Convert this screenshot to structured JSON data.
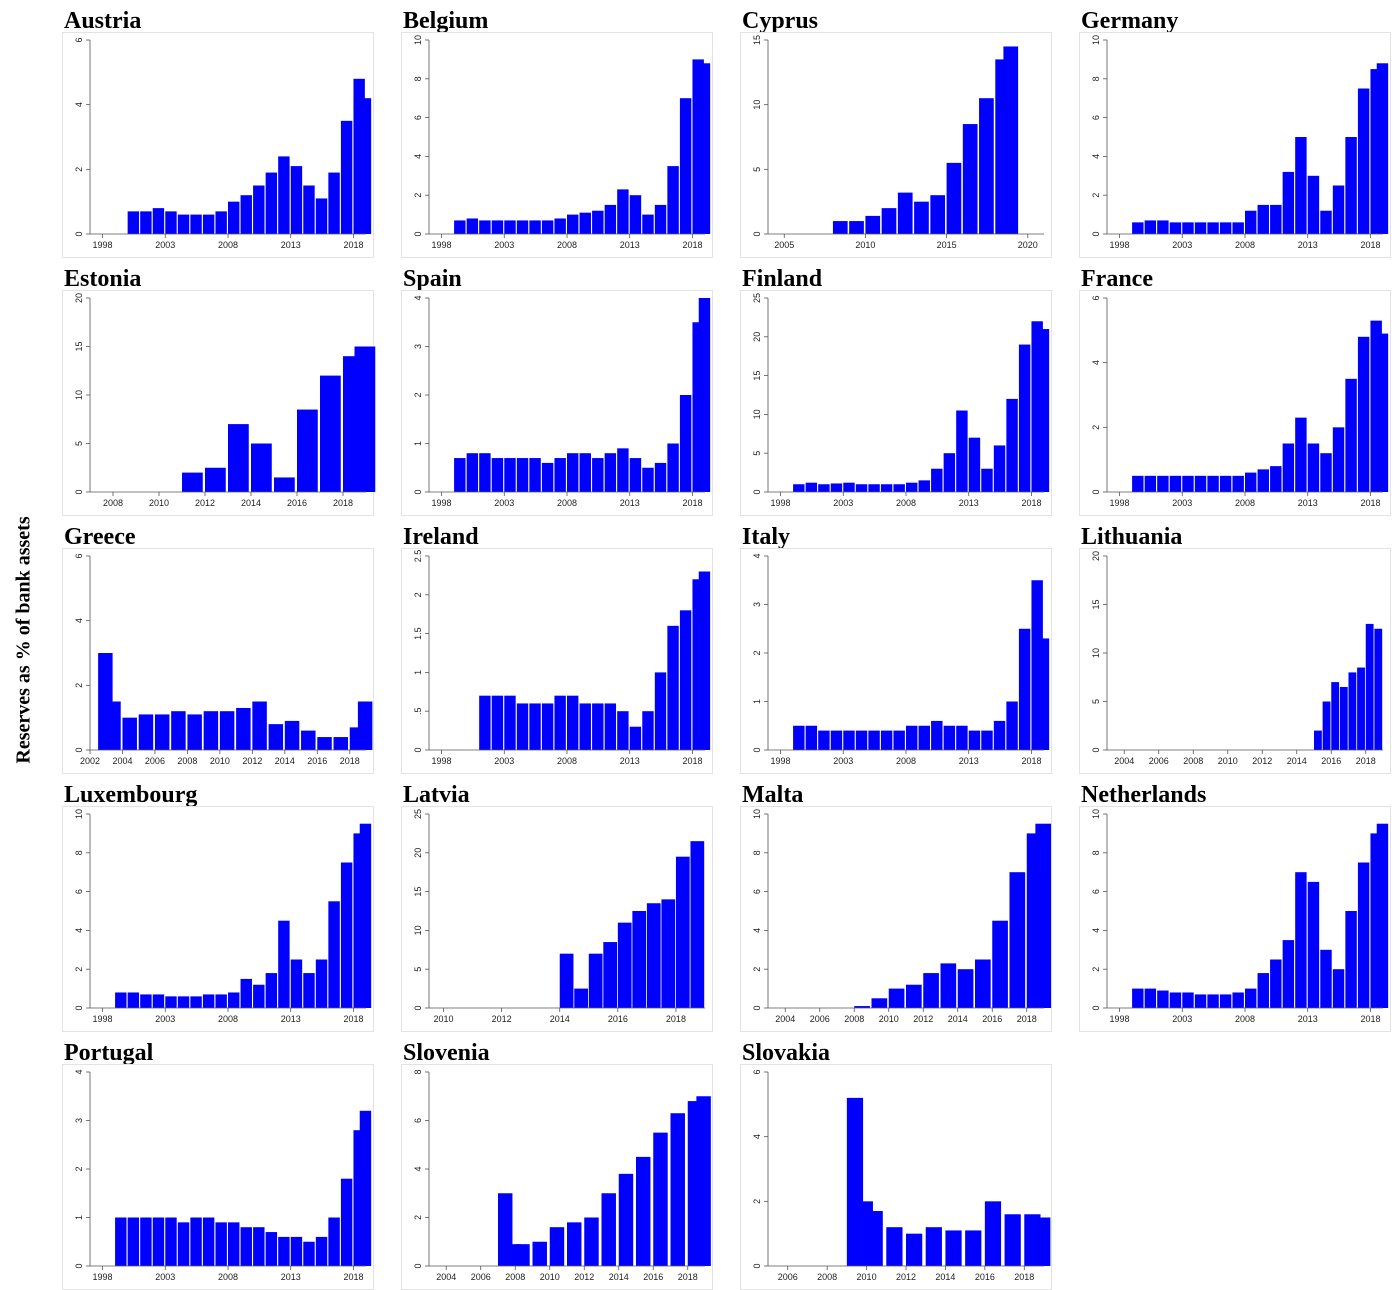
{
  "ylabel": "Reserves as % of bank assets",
  "bar_color": "#0000ff",
  "chart_data": [
    {
      "type": "bar",
      "title": "Austria",
      "xlim": [
        1997,
        2019
      ],
      "xticks": [
        1998,
        2003,
        2008,
        2013,
        2018
      ],
      "ylim": [
        0,
        6
      ],
      "yticks": [
        0,
        2,
        4,
        6
      ],
      "series": {
        "x": [
          2000,
          2001,
          2002,
          2003,
          2004,
          2005,
          2006,
          2007,
          2008,
          2009,
          2010,
          2011,
          2012,
          2013,
          2014,
          2015,
          2016,
          2017,
          2018,
          2018.5
        ],
        "y": [
          0.7,
          0.7,
          0.8,
          0.7,
          0.6,
          0.6,
          0.6,
          0.7,
          1.0,
          1.2,
          1.5,
          1.9,
          2.4,
          2.1,
          1.5,
          1.1,
          1.9,
          3.5,
          4.8,
          4.2
        ]
      }
    },
    {
      "type": "bar",
      "title": "Belgium",
      "xlim": [
        1997,
        2019
      ],
      "xticks": [
        1998,
        2003,
        2008,
        2013,
        2018
      ],
      "ylim": [
        0,
        10
      ],
      "yticks": [
        0,
        2,
        4,
        6,
        8,
        10
      ],
      "series": {
        "x": [
          1999,
          2000,
          2001,
          2002,
          2003,
          2004,
          2005,
          2006,
          2007,
          2008,
          2009,
          2010,
          2011,
          2012,
          2013,
          2014,
          2015,
          2016,
          2017,
          2018,
          2018.5
        ],
        "y": [
          0.7,
          0.8,
          0.7,
          0.7,
          0.7,
          0.7,
          0.7,
          0.7,
          0.8,
          1.0,
          1.1,
          1.2,
          1.5,
          2.3,
          2.0,
          1.0,
          1.5,
          3.5,
          7.0,
          9.0,
          8.8
        ]
      }
    },
    {
      "type": "bar",
      "title": "Cyprus",
      "xlim": [
        2004,
        2021
      ],
      "xticks": [
        2005,
        2010,
        2015,
        2020
      ],
      "ylim": [
        0,
        15
      ],
      "yticks": [
        0,
        5,
        10,
        15
      ],
      "series": {
        "x": [
          2008,
          2009,
          2010,
          2011,
          2012,
          2013,
          2014,
          2015,
          2016,
          2017,
          2018,
          2018.5
        ],
        "y": [
          1.0,
          1.0,
          1.4,
          2.0,
          3.2,
          2.5,
          3.0,
          5.5,
          8.5,
          10.5,
          13.5,
          14.5
        ]
      }
    },
    {
      "type": "bar",
      "title": "Germany",
      "xlim": [
        1997,
        2019
      ],
      "xticks": [
        1998,
        2003,
        2008,
        2013,
        2018
      ],
      "ylim": [
        0,
        10
      ],
      "yticks": [
        0,
        2,
        4,
        6,
        8,
        10
      ],
      "series": {
        "x": [
          1999,
          2000,
          2001,
          2002,
          2003,
          2004,
          2005,
          2006,
          2007,
          2008,
          2009,
          2010,
          2011,
          2012,
          2013,
          2014,
          2015,
          2016,
          2017,
          2018,
          2018.5
        ],
        "y": [
          0.6,
          0.7,
          0.7,
          0.6,
          0.6,
          0.6,
          0.6,
          0.6,
          0.6,
          1.2,
          1.5,
          1.5,
          3.2,
          5.0,
          3.0,
          1.2,
          2.5,
          5.0,
          7.5,
          8.5,
          8.8
        ]
      }
    },
    {
      "type": "bar",
      "title": "Estonia",
      "xlim": [
        2007,
        2019
      ],
      "xticks": [
        2008,
        2010,
        2012,
        2014,
        2016,
        2018
      ],
      "ylim": [
        0,
        20
      ],
      "yticks": [
        0,
        5,
        10,
        15,
        20
      ],
      "series": {
        "x": [
          2011,
          2012,
          2013,
          2014,
          2015,
          2016,
          2017,
          2018,
          2018.5
        ],
        "y": [
          2.0,
          2.5,
          7.0,
          5.0,
          1.5,
          8.5,
          12.0,
          14.0,
          15.0
        ]
      }
    },
    {
      "type": "bar",
      "title": "Spain",
      "xlim": [
        1997,
        2019
      ],
      "xticks": [
        1998,
        2003,
        2008,
        2013,
        2018
      ],
      "ylim": [
        0,
        4
      ],
      "yticks": [
        0,
        1,
        2,
        3,
        4
      ],
      "series": {
        "x": [
          1999,
          2000,
          2001,
          2002,
          2003,
          2004,
          2005,
          2006,
          2007,
          2008,
          2009,
          2010,
          2011,
          2012,
          2013,
          2014,
          2015,
          2016,
          2017,
          2018,
          2018.5
        ],
        "y": [
          0.7,
          0.8,
          0.8,
          0.7,
          0.7,
          0.7,
          0.7,
          0.6,
          0.7,
          0.8,
          0.8,
          0.7,
          0.8,
          0.9,
          0.7,
          0.5,
          0.6,
          1.0,
          2.0,
          3.5,
          4.0
        ]
      }
    },
    {
      "type": "bar",
      "title": "Finland",
      "xlim": [
        1997,
        2019
      ],
      "xticks": [
        1998,
        2003,
        2008,
        2013,
        2018
      ],
      "ylim": [
        0,
        25
      ],
      "yticks": [
        0,
        5,
        10,
        15,
        20,
        25
      ],
      "series": {
        "x": [
          1999,
          2000,
          2001,
          2002,
          2003,
          2004,
          2005,
          2006,
          2007,
          2008,
          2009,
          2010,
          2011,
          2012,
          2013,
          2014,
          2015,
          2016,
          2017,
          2018,
          2018.5
        ],
        "y": [
          1.0,
          1.2,
          1.0,
          1.1,
          1.2,
          1.0,
          1.0,
          1.0,
          1.0,
          1.2,
          1.5,
          3.0,
          5.0,
          10.5,
          7.0,
          3.0,
          6.0,
          12.0,
          19.0,
          22.0,
          21.0
        ]
      }
    },
    {
      "type": "bar",
      "title": "France",
      "xlim": [
        1997,
        2019
      ],
      "xticks": [
        1998,
        2003,
        2008,
        2013,
        2018
      ],
      "ylim": [
        0,
        6
      ],
      "yticks": [
        0,
        2,
        4,
        6
      ],
      "series": {
        "x": [
          1999,
          2000,
          2001,
          2002,
          2003,
          2004,
          2005,
          2006,
          2007,
          2008,
          2009,
          2010,
          2011,
          2012,
          2013,
          2014,
          2015,
          2016,
          2017,
          2018,
          2018.5
        ],
        "y": [
          0.5,
          0.5,
          0.5,
          0.5,
          0.5,
          0.5,
          0.5,
          0.5,
          0.5,
          0.6,
          0.7,
          0.8,
          1.5,
          2.3,
          1.5,
          1.2,
          2.0,
          3.5,
          4.8,
          5.3,
          4.9
        ]
      }
    },
    {
      "type": "bar",
      "title": "Greece",
      "xlim": [
        2002,
        2019
      ],
      "xticks": [
        2002,
        2004,
        2006,
        2008,
        2010,
        2012,
        2014,
        2016,
        2018
      ],
      "ylim": [
        0,
        6
      ],
      "yticks": [
        0,
        2,
        4,
        6
      ],
      "series": {
        "x": [
          2002.5,
          2003,
          2004,
          2005,
          2006,
          2007,
          2008,
          2009,
          2010,
          2011,
          2012,
          2013,
          2014,
          2015,
          2016,
          2017,
          2018,
          2018.5
        ],
        "y": [
          3.0,
          1.5,
          1.0,
          1.1,
          1.1,
          1.2,
          1.1,
          1.2,
          1.2,
          1.3,
          1.5,
          0.8,
          0.9,
          0.6,
          0.4,
          0.4,
          0.7,
          1.5
        ]
      }
    },
    {
      "type": "bar",
      "title": "Ireland",
      "xlim": [
        1997,
        2019
      ],
      "xticks": [
        1998,
        2003,
        2008,
        2013,
        2018
      ],
      "ylim": [
        0,
        2.5
      ],
      "yticks": [
        0,
        0.5,
        1,
        1.5,
        2,
        2.5
      ],
      "ytick_labels": [
        "0",
        ".5",
        "1",
        "1.5",
        "2",
        "2.5"
      ],
      "series": {
        "x": [
          2001,
          2002,
          2003,
          2004,
          2005,
          2006,
          2007,
          2008,
          2009,
          2010,
          2011,
          2012,
          2013,
          2014,
          2015,
          2016,
          2017,
          2018,
          2018.5
        ],
        "y": [
          0.7,
          0.7,
          0.7,
          0.6,
          0.6,
          0.6,
          0.7,
          0.7,
          0.6,
          0.6,
          0.6,
          0.5,
          0.3,
          0.5,
          1.0,
          1.6,
          1.8,
          2.2,
          2.3
        ]
      }
    },
    {
      "type": "bar",
      "title": "Italy",
      "xlim": [
        1997,
        2019
      ],
      "xticks": [
        1998,
        2003,
        2008,
        2013,
        2018
      ],
      "ylim": [
        0,
        4
      ],
      "yticks": [
        0,
        1,
        2,
        3,
        4
      ],
      "series": {
        "x": [
          1999,
          2000,
          2001,
          2002,
          2003,
          2004,
          2005,
          2006,
          2007,
          2008,
          2009,
          2010,
          2011,
          2012,
          2013,
          2014,
          2015,
          2016,
          2017,
          2018,
          2018.5
        ],
        "y": [
          0.5,
          0.5,
          0.4,
          0.4,
          0.4,
          0.4,
          0.4,
          0.4,
          0.4,
          0.5,
          0.5,
          0.6,
          0.5,
          0.5,
          0.4,
          0.4,
          0.6,
          1.0,
          2.5,
          3.5,
          2.3
        ]
      }
    },
    {
      "type": "bar",
      "title": "Lithuania",
      "xlim": [
        2003,
        2019
      ],
      "xticks": [
        2004,
        2006,
        2008,
        2010,
        2012,
        2014,
        2016,
        2018
      ],
      "ylim": [
        0,
        20
      ],
      "yticks": [
        0,
        5,
        10,
        15,
        20
      ],
      "series": {
        "x": [
          2015,
          2015.5,
          2016,
          2016.5,
          2017,
          2017.5,
          2018,
          2018.5
        ],
        "y": [
          2.0,
          5.0,
          7.0,
          6.5,
          8.0,
          8.5,
          13.0,
          12.5
        ]
      }
    },
    {
      "type": "bar",
      "title": "Luxembourg",
      "xlim": [
        1997,
        2019
      ],
      "xticks": [
        1998,
        2003,
        2008,
        2013,
        2018
      ],
      "ylim": [
        0,
        10
      ],
      "yticks": [
        0,
        2,
        4,
        6,
        8,
        10
      ],
      "series": {
        "x": [
          1999,
          2000,
          2001,
          2002,
          2003,
          2004,
          2005,
          2006,
          2007,
          2008,
          2009,
          2010,
          2011,
          2012,
          2013,
          2014,
          2015,
          2016,
          2017,
          2018,
          2018.5
        ],
        "y": [
          0.8,
          0.8,
          0.7,
          0.7,
          0.6,
          0.6,
          0.6,
          0.7,
          0.7,
          0.8,
          1.5,
          1.2,
          1.8,
          4.5,
          2.5,
          1.8,
          2.5,
          5.5,
          7.5,
          9.0,
          9.5
        ]
      }
    },
    {
      "type": "bar",
      "title": "Latvia",
      "xlim": [
        2009.5,
        2019
      ],
      "xticks": [
        2010,
        2012,
        2014,
        2016,
        2018
      ],
      "ylim": [
        0,
        25
      ],
      "yticks": [
        0,
        5,
        10,
        15,
        20,
        25
      ],
      "series": {
        "x": [
          2014,
          2014.5,
          2015,
          2015.5,
          2016,
          2016.5,
          2017,
          2017.5,
          2018,
          2018.5
        ],
        "y": [
          7.0,
          2.5,
          7.0,
          8.5,
          11.0,
          12.5,
          13.5,
          14.0,
          19.5,
          21.5
        ]
      }
    },
    {
      "type": "bar",
      "title": "Malta",
      "xlim": [
        2003,
        2019
      ],
      "xticks": [
        2004,
        2006,
        2008,
        2010,
        2012,
        2014,
        2016,
        2018
      ],
      "ylim": [
        0,
        10
      ],
      "yticks": [
        0,
        2,
        4,
        6,
        8,
        10
      ],
      "series": {
        "x": [
          2008,
          2009,
          2010,
          2011,
          2012,
          2013,
          2014,
          2015,
          2016,
          2017,
          2018,
          2018.5
        ],
        "y": [
          0.1,
          0.5,
          1.0,
          1.2,
          1.8,
          2.3,
          2.0,
          2.5,
          4.5,
          7.0,
          9.0,
          9.5
        ]
      }
    },
    {
      "type": "bar",
      "title": "Netherlands",
      "xlim": [
        1997,
        2019
      ],
      "xticks": [
        1998,
        2003,
        2008,
        2013,
        2018
      ],
      "ylim": [
        0,
        10
      ],
      "yticks": [
        0,
        2,
        4,
        6,
        8,
        10
      ],
      "series": {
        "x": [
          1999,
          2000,
          2001,
          2002,
          2003,
          2004,
          2005,
          2006,
          2007,
          2008,
          2009,
          2010,
          2011,
          2012,
          2013,
          2014,
          2015,
          2016,
          2017,
          2018,
          2018.5
        ],
        "y": [
          1.0,
          1.0,
          0.9,
          0.8,
          0.8,
          0.7,
          0.7,
          0.7,
          0.8,
          1.0,
          1.8,
          2.5,
          3.5,
          7.0,
          6.5,
          3.0,
          2.0,
          5.0,
          7.5,
          9.0,
          9.5
        ]
      }
    },
    {
      "type": "bar",
      "title": "Portugal",
      "xlim": [
        1997,
        2019
      ],
      "xticks": [
        1998,
        2003,
        2008,
        2013,
        2018
      ],
      "ylim": [
        0,
        4
      ],
      "yticks": [
        0,
        1,
        2,
        3,
        4
      ],
      "series": {
        "x": [
          1999,
          2000,
          2001,
          2002,
          2003,
          2004,
          2005,
          2006,
          2007,
          2008,
          2009,
          2010,
          2011,
          2012,
          2013,
          2014,
          2015,
          2016,
          2017,
          2018,
          2018.5
        ],
        "y": [
          1.0,
          1.0,
          1.0,
          1.0,
          1.0,
          0.9,
          1.0,
          1.0,
          0.9,
          0.9,
          0.8,
          0.8,
          0.7,
          0.6,
          0.6,
          0.5,
          0.6,
          1.0,
          1.8,
          2.8,
          3.2
        ]
      }
    },
    {
      "type": "bar",
      "title": "Slovenia",
      "xlim": [
        2003,
        2019
      ],
      "xticks": [
        2004,
        2006,
        2008,
        2010,
        2012,
        2014,
        2016,
        2018
      ],
      "ylim": [
        0,
        8
      ],
      "yticks": [
        0,
        2,
        4,
        6,
        8
      ],
      "series": {
        "x": [
          2007,
          2007.5,
          2008,
          2009,
          2010,
          2011,
          2012,
          2013,
          2014,
          2015,
          2016,
          2017,
          2018,
          2018.5
        ],
        "y": [
          3.0,
          0.9,
          0.9,
          1.0,
          1.6,
          1.8,
          2.0,
          3.0,
          3.8,
          4.5,
          5.5,
          6.3,
          6.8,
          7.0
        ]
      }
    },
    {
      "type": "bar",
      "title": "Slovakia",
      "xlim": [
        2005,
        2019
      ],
      "xticks": [
        2006,
        2008,
        2010,
        2012,
        2014,
        2016,
        2018
      ],
      "ylim": [
        0,
        6
      ],
      "yticks": [
        0,
        2,
        4,
        6
      ],
      "series": {
        "x": [
          2009,
          2009.5,
          2010,
          2011,
          2012,
          2013,
          2014,
          2015,
          2016,
          2017,
          2018,
          2018.5
        ],
        "y": [
          5.2,
          2.0,
          1.7,
          1.2,
          1.0,
          1.2,
          1.1,
          1.1,
          2.0,
          1.6,
          1.6,
          1.5
        ]
      }
    }
  ]
}
